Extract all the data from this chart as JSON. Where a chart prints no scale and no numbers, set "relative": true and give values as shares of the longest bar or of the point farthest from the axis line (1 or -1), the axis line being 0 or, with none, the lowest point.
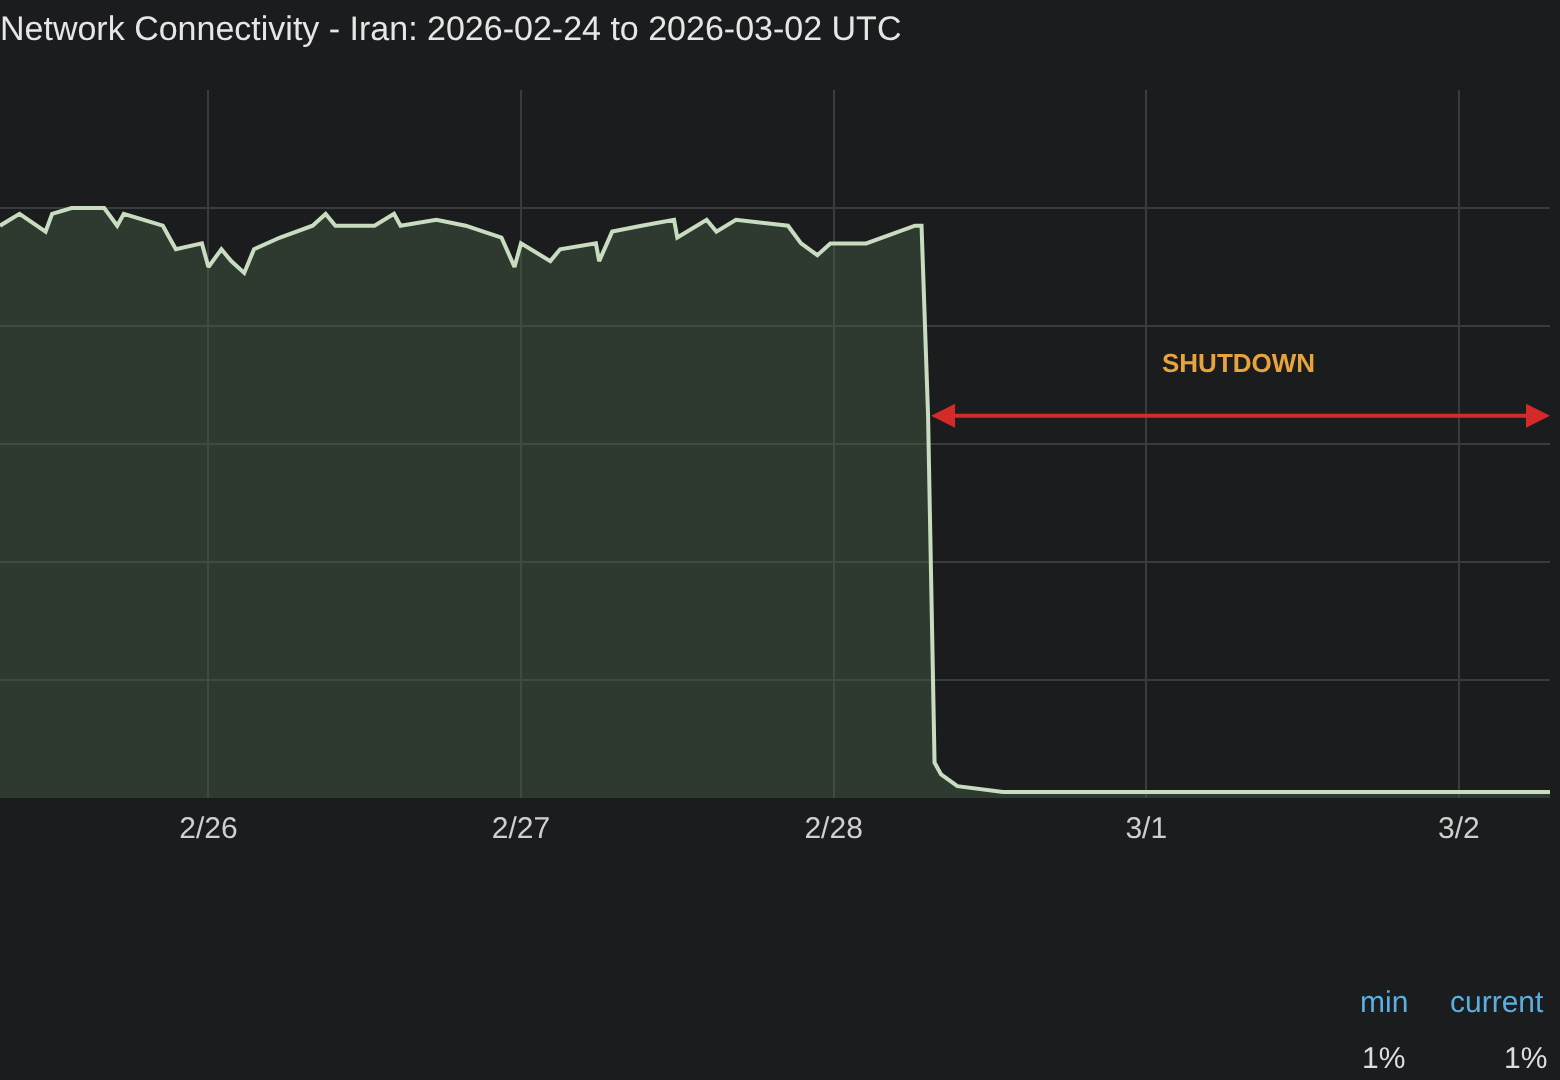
{
  "chart_data": {
    "type": "area",
    "title": "Network Connectivity - Iran: 2026-02-24 to 2026-03-02 UTC",
    "relative": true,
    "grid": true,
    "xlim": [
      "2026-02-25T08:00",
      "2026-03-02T07:00"
    ],
    "xticks": [
      {
        "value": "2026-02-26",
        "label": "2/26"
      },
      {
        "value": "2026-02-27",
        "label": "2/27"
      },
      {
        "value": "2026-02-28",
        "label": "2/28"
      },
      {
        "value": "2026-03-01",
        "label": "3/1"
      },
      {
        "value": "2026-03-02",
        "label": "3/2"
      }
    ],
    "x": [
      "2026-02-25T08:00",
      "2026-02-25T09:30",
      "2026-02-25T11:30",
      "2026-02-25T12:00",
      "2026-02-25T13:30",
      "2026-02-25T16:00",
      "2026-02-25T17:00",
      "2026-02-25T17:30",
      "2026-02-25T20:30",
      "2026-02-25T21:30",
      "2026-02-25T23:30",
      "2026-02-26T00:00",
      "2026-02-26T01:00",
      "2026-02-26T01:45",
      "2026-02-26T02:45",
      "2026-02-26T03:30",
      "2026-02-26T05:30",
      "2026-02-26T08:00",
      "2026-02-26T09:00",
      "2026-02-26T09:45",
      "2026-02-26T12:45",
      "2026-02-26T14:15",
      "2026-02-26T14:45",
      "2026-02-26T17:30",
      "2026-02-26T19:45",
      "2026-02-26T22:30",
      "2026-02-26T23:30",
      "2026-02-27T00:00",
      "2026-02-27T02:15",
      "2026-02-27T03:00",
      "2026-02-27T05:45",
      "2026-02-27T06:00",
      "2026-02-27T07:00",
      "2026-02-27T09:15",
      "2026-02-27T11:45",
      "2026-02-27T12:00",
      "2026-02-27T14:15",
      "2026-02-27T15:00",
      "2026-02-27T16:30",
      "2026-02-27T20:30",
      "2026-02-27T21:30",
      "2026-02-27T22:45",
      "2026-02-27T23:45",
      "2026-02-28T02:30",
      "2026-02-28T06:15",
      "2026-02-28T06:45",
      "2026-02-28T07:15",
      "2026-02-28T07:45",
      "2026-02-28T08:15",
      "2026-02-28T09:30",
      "2026-02-28T13:00",
      "2026-03-01T04:15",
      "2026-03-01T23:45",
      "2026-03-02T07:00"
    ],
    "series": [
      {
        "color": "#c8dcc0",
        "values": [
          0.97,
          0.99,
          0.96,
          0.99,
          1.0,
          1.0,
          0.97,
          0.99,
          0.97,
          0.93,
          0.94,
          0.9,
          0.93,
          0.91,
          0.89,
          0.93,
          0.95,
          0.97,
          0.99,
          0.97,
          0.97,
          0.99,
          0.97,
          0.98,
          0.97,
          0.95,
          0.9,
          0.94,
          0.91,
          0.93,
          0.94,
          0.91,
          0.96,
          0.97,
          0.98,
          0.95,
          0.98,
          0.96,
          0.98,
          0.97,
          0.94,
          0.92,
          0.94,
          0.94,
          0.97,
          0.97,
          0.65,
          0.06,
          0.04,
          0.02,
          0.01,
          0.01,
          0.01,
          0.01
        ]
      }
    ],
    "annotations": [
      "SHUTDOWN",
      "min",
      "current",
      "1%",
      "1%"
    ]
  }
}
